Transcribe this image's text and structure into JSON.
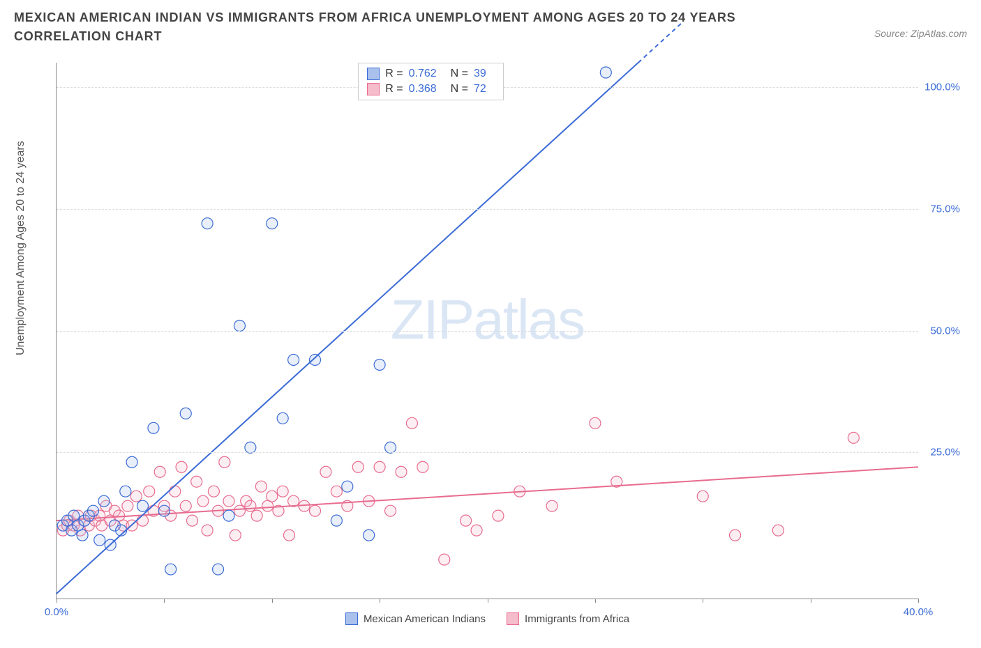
{
  "title": "MEXICAN AMERICAN INDIAN VS IMMIGRANTS FROM AFRICA UNEMPLOYMENT AMONG AGES 20 TO 24 YEARS CORRELATION CHART",
  "source": "Source: ZipAtlas.com",
  "watermark_bold": "ZIP",
  "watermark_light": "atlas",
  "chart": {
    "type": "scatter",
    "y_axis_label": "Unemployment Among Ages 20 to 24 years",
    "x_range": [
      0,
      40
    ],
    "y_range": [
      -5,
      105
    ],
    "x_ticks": [
      0,
      5,
      10,
      15,
      20,
      25,
      30,
      35,
      40
    ],
    "x_tick_labels": {
      "0": "0.0%",
      "40": "40.0%"
    },
    "y_grid": [
      25,
      50,
      75,
      100
    ],
    "y_tick_labels": {
      "25": "25.0%",
      "50": "50.0%",
      "75": "75.0%",
      "100": "100.0%"
    },
    "background_color": "#ffffff",
    "grid_color": "#dddddd",
    "axis_color": "#888888",
    "tick_label_color": "#3b6bd6",
    "marker_radius": 8,
    "marker_stroke_width": 1.2,
    "marker_fill_opacity": 0.25,
    "line_width": 2,
    "series": [
      {
        "name": "Mexican American Indians",
        "color_stroke": "#3b6bd6",
        "color_fill": "#a9c1ec",
        "R": "0.762",
        "N": "39",
        "regression": {
          "x1": 0,
          "y1": -4,
          "x2": 27,
          "y2": 105,
          "extend_dash_to_x": 29
        },
        "points": [
          [
            0.3,
            10
          ],
          [
            0.5,
            11
          ],
          [
            0.7,
            9
          ],
          [
            0.8,
            12
          ],
          [
            1.0,
            10
          ],
          [
            1.2,
            8
          ],
          [
            1.3,
            11
          ],
          [
            1.5,
            12
          ],
          [
            1.7,
            13
          ],
          [
            2.0,
            7
          ],
          [
            2.2,
            15
          ],
          [
            2.5,
            6
          ],
          [
            2.7,
            10
          ],
          [
            3.0,
            9
          ],
          [
            3.2,
            17
          ],
          [
            3.5,
            23
          ],
          [
            4.0,
            14
          ],
          [
            4.5,
            30
          ],
          [
            5.0,
            13
          ],
          [
            5.3,
            1
          ],
          [
            6.0,
            33
          ],
          [
            7.0,
            72
          ],
          [
            7.5,
            1
          ],
          [
            8.0,
            12
          ],
          [
            8.5,
            51
          ],
          [
            9.0,
            26
          ],
          [
            10.0,
            72
          ],
          [
            10.5,
            32
          ],
          [
            11.0,
            44
          ],
          [
            12.0,
            44
          ],
          [
            13.0,
            11
          ],
          [
            13.5,
            18
          ],
          [
            14.5,
            8
          ],
          [
            15.0,
            43
          ],
          [
            15.5,
            26
          ],
          [
            25.5,
            103
          ]
        ]
      },
      {
        "name": "Immigrants from Africa",
        "color_stroke": "#e86c8f",
        "color_fill": "#f5bccb",
        "R": "0.368",
        "N": "72",
        "regression": {
          "x1": 0,
          "y1": 11,
          "x2": 40,
          "y2": 22
        },
        "points": [
          [
            0.3,
            9
          ],
          [
            0.5,
            10
          ],
          [
            0.6,
            11
          ],
          [
            0.8,
            10
          ],
          [
            1.0,
            12
          ],
          [
            1.1,
            9
          ],
          [
            1.3,
            11
          ],
          [
            1.5,
            10
          ],
          [
            1.6,
            12
          ],
          [
            1.8,
            11
          ],
          [
            2.0,
            12
          ],
          [
            2.1,
            10
          ],
          [
            2.3,
            14
          ],
          [
            2.5,
            11
          ],
          [
            2.7,
            13
          ],
          [
            2.9,
            12
          ],
          [
            3.1,
            10
          ],
          [
            3.3,
            14
          ],
          [
            3.5,
            10
          ],
          [
            3.7,
            16
          ],
          [
            4.0,
            11
          ],
          [
            4.3,
            17
          ],
          [
            4.5,
            13
          ],
          [
            4.8,
            21
          ],
          [
            5.0,
            14
          ],
          [
            5.3,
            12
          ],
          [
            5.5,
            17
          ],
          [
            5.8,
            22
          ],
          [
            6.0,
            14
          ],
          [
            6.3,
            11
          ],
          [
            6.5,
            19
          ],
          [
            6.8,
            15
          ],
          [
            7.0,
            9
          ],
          [
            7.3,
            17
          ],
          [
            7.5,
            13
          ],
          [
            7.8,
            23
          ],
          [
            8.0,
            15
          ],
          [
            8.3,
            8
          ],
          [
            8.5,
            13
          ],
          [
            8.8,
            15
          ],
          [
            9.0,
            14
          ],
          [
            9.3,
            12
          ],
          [
            9.5,
            18
          ],
          [
            9.8,
            14
          ],
          [
            10.0,
            16
          ],
          [
            10.3,
            13
          ],
          [
            10.5,
            17
          ],
          [
            10.8,
            8
          ],
          [
            11.0,
            15
          ],
          [
            11.5,
            14
          ],
          [
            12.0,
            13
          ],
          [
            12.5,
            21
          ],
          [
            13.0,
            17
          ],
          [
            13.5,
            14
          ],
          [
            14.0,
            22
          ],
          [
            14.5,
            15
          ],
          [
            15.0,
            22
          ],
          [
            15.5,
            13
          ],
          [
            16.0,
            21
          ],
          [
            16.5,
            31
          ],
          [
            17.0,
            22
          ],
          [
            18.0,
            3
          ],
          [
            19.0,
            11
          ],
          [
            19.5,
            9
          ],
          [
            20.5,
            12
          ],
          [
            21.5,
            17
          ],
          [
            23.0,
            14
          ],
          [
            25.0,
            31
          ],
          [
            26.0,
            19
          ],
          [
            30.0,
            16
          ],
          [
            31.5,
            8
          ],
          [
            33.5,
            9
          ],
          [
            37.0,
            28
          ]
        ]
      }
    ]
  },
  "legend_stats_label_R": "R =",
  "legend_stats_label_N": "N ="
}
